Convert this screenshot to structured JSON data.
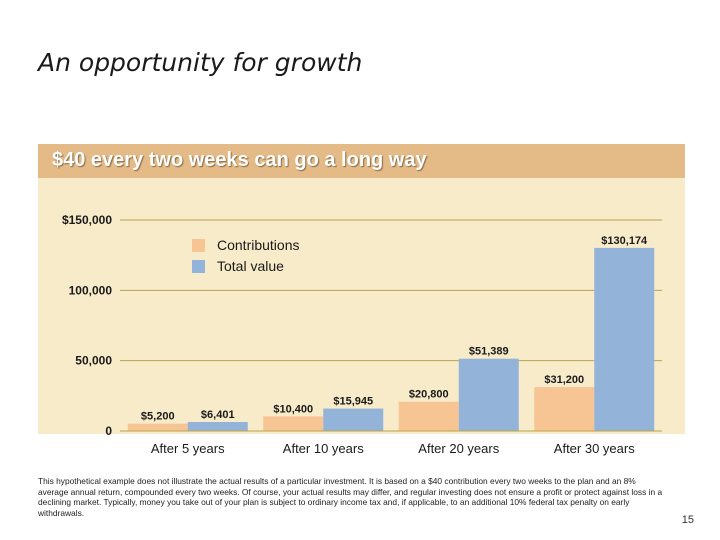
{
  "slide": {
    "title": "An opportunity for growth",
    "banner": "$40 every two weeks can go a long way",
    "page_number": "15",
    "disclaimer": "This hypothetical example does not illustrate the actual results of a particular investment. It is based on a $40 contribution every two weeks to the plan and an 8% average annual return, compounded every two weeks. Of course, your actual results may differ, and regular investing does not ensure a profit or protect against loss in a declining market. Typically, money you take out of your plan is subject to ordinary income tax and, if applicable, to an additional 10% federal tax penalty on early withdrawals."
  },
  "chart_data": {
    "type": "bar",
    "title": "$40 every two weeks can go a long way",
    "categories": [
      "After 5 years",
      "After 10 years",
      "After 20 years",
      "After 30 years"
    ],
    "series": [
      {
        "name": "Contributions",
        "values": [
          5200,
          10400,
          20800,
          31200
        ],
        "labels": [
          "$5,200",
          "$10,400",
          "$20,800",
          "$31,200"
        ],
        "color": "#f7c494"
      },
      {
        "name": "Total value",
        "values": [
          6401,
          15945,
          51389,
          130174
        ],
        "labels": [
          "$6,401",
          "$15,945",
          "$51,389",
          "$130,174"
        ],
        "color": "#93b3d9"
      }
    ],
    "yticks": [
      0,
      50000,
      100000,
      150000
    ],
    "ytick_labels": [
      "0",
      "50,000",
      "100,000",
      "$150,000"
    ],
    "ylim": [
      0,
      150000
    ],
    "grid": true,
    "legend": "top-left",
    "gridline_color": "#b8a34a"
  }
}
